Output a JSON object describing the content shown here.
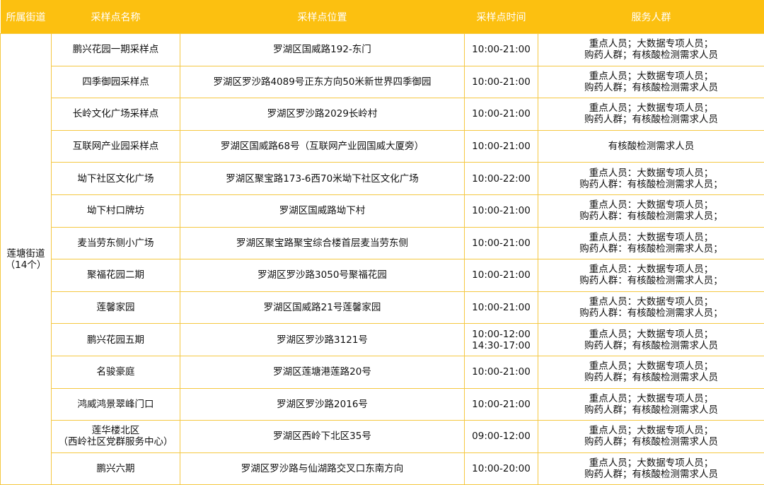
{
  "header": [
    "所属街道",
    "采样点名称",
    "采样点位置",
    "采样点时间",
    "服务人群"
  ],
  "street": {
    "name": "莲塘街道",
    "count": "（14个）"
  },
  "colors": {
    "header_bg": "#FCC010",
    "border": "#F5C842"
  },
  "rows": [
    {
      "name": [
        "鹏兴花园一期采样点"
      ],
      "location": "罗湖区国威路192-东门",
      "time": [
        "10:00-21:00"
      ],
      "service": [
        "重点人员；大数据专项人员；",
        "购药人群；有核酸检测需求人员"
      ]
    },
    {
      "name": [
        "四季御园采样点"
      ],
      "location": "罗湖区罗沙路4089号正东方向50米新世界四季御园",
      "time": [
        "10:00-21:00"
      ],
      "service": [
        "重点人员；大数据专项人员；",
        "购药人群；有核酸检测需求人员"
      ]
    },
    {
      "name": [
        "长岭文化广场采样点"
      ],
      "location": "罗湖区罗沙路2029长岭村",
      "time": [
        "10:00-21:00"
      ],
      "service": [
        "重点人员；大数据专项人员；",
        "购药人群；有核酸检测需求人员"
      ]
    },
    {
      "name": [
        "互联网产业园采样点"
      ],
      "location": "罗湖区国威路68号（互联网产业园国威大厦旁）",
      "time": [
        "10:00-21:00"
      ],
      "service": [
        "有核酸检测需求人员"
      ]
    },
    {
      "name": [
        "坳下社区文化广场"
      ],
      "location": "罗湖区聚宝路173-6西70米坳下社区文化广场",
      "time": [
        "10:00-22:00"
      ],
      "service": [
        "重点人员：大数据专项人员；",
        "购药人群：有核酸检测需求人员；"
      ]
    },
    {
      "name": [
        "坳下村口牌坊"
      ],
      "location": "罗湖区国威路坳下村",
      "time": [
        "10:00-21:00"
      ],
      "service": [
        "重点人员：大数据专项人员；",
        "购药人群：有核酸检测需求人员；"
      ]
    },
    {
      "name": [
        "麦当劳东侧小广场"
      ],
      "location": "罗湖区聚宝路聚宝综合楼首层麦当劳东侧",
      "time": [
        "10:00-21:00"
      ],
      "service": [
        "重点人员：大数据专项人员；",
        "购药人群：有核酸检测需求人员；"
      ]
    },
    {
      "name": [
        "聚福花园二期"
      ],
      "location": "罗湖区罗沙路3050号聚福花园",
      "time": [
        "10:00-21:00"
      ],
      "service": [
        "重点人员：大数据专项人员；",
        "购药人群：有核酸检测需求人员；"
      ]
    },
    {
      "name": [
        "莲馨家园"
      ],
      "location": "罗湖区国威路21号莲馨家园",
      "time": [
        "10:00-21:00"
      ],
      "service": [
        "重点人员：大数据专项人员；",
        "购药人群：有核酸检测需求人员；"
      ]
    },
    {
      "name": [
        "鹏兴花园五期"
      ],
      "location": "罗湖区罗沙路3121号",
      "time": [
        "10:00-12:00",
        "14:30-17:00"
      ],
      "service": [
        "重点人员；大数据专项人员；",
        "购药人群；有核酸检测需求人员"
      ]
    },
    {
      "name": [
        "名骏豪庭"
      ],
      "location": "罗湖区莲塘港莲路20号",
      "time": [
        "10:00-21:00"
      ],
      "service": [
        "重点人员；大数据专项人员；",
        "购药人群；有核酸检测需求人员"
      ]
    },
    {
      "name": [
        "鸿威鸿景翠峰门口"
      ],
      "location": "罗湖区罗沙路2016号",
      "time": [
        "10:00-21:00"
      ],
      "service": [
        "重点人员；大数据专项人员；",
        "购药人群；有核酸检测需求人员"
      ]
    },
    {
      "name": [
        "莲华楼北区",
        "（西岭社区党群服务中心）"
      ],
      "location": "罗湖区西岭下北区35号",
      "time": [
        "09:00-12:00"
      ],
      "service": [
        "重点人员；大数据专项人员；",
        "购药人群；有核酸检测需求人员"
      ]
    },
    {
      "name": [
        "鹏兴六期"
      ],
      "location": "罗湖区罗沙路与仙湖路交叉口东南方向",
      "time": [
        "10:00-20:00"
      ],
      "service": [
        "重点人员；大数据专项人员；",
        "购药人群；有核酸检测需求人员"
      ]
    }
  ]
}
